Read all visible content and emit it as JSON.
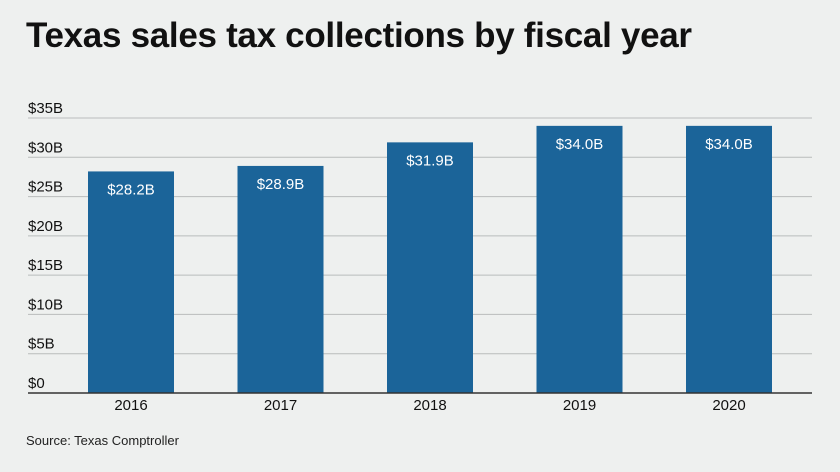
{
  "title": "Texas sales tax collections by fiscal year",
  "source": "Source: Texas Comptroller",
  "colors": {
    "bar": "#1b6499",
    "grid": "#b9bcbc",
    "axis": "#333333",
    "background": "#eef0ef"
  },
  "chart_data": {
    "type": "bar",
    "title": "Texas sales tax collections by fiscal year",
    "categories": [
      "2016",
      "2017",
      "2018",
      "2019",
      "2020"
    ],
    "values": [
      28.2,
      28.9,
      31.9,
      34.0,
      34.0
    ],
    "data_labels": [
      "$28.2B",
      "$28.9B",
      "$31.9B",
      "$34.0B",
      "$34.0B"
    ],
    "ylim": [
      0,
      35
    ],
    "yticks": [
      0,
      5,
      10,
      15,
      20,
      25,
      30,
      35
    ],
    "ytick_labels": [
      "$0",
      "$5B",
      "$10B",
      "$15B",
      "$20B",
      "$25B",
      "$30B",
      "$35B"
    ],
    "xlabel": "",
    "ylabel": "",
    "grid": true,
    "legend": "none",
    "unit": "billions of dollars"
  }
}
